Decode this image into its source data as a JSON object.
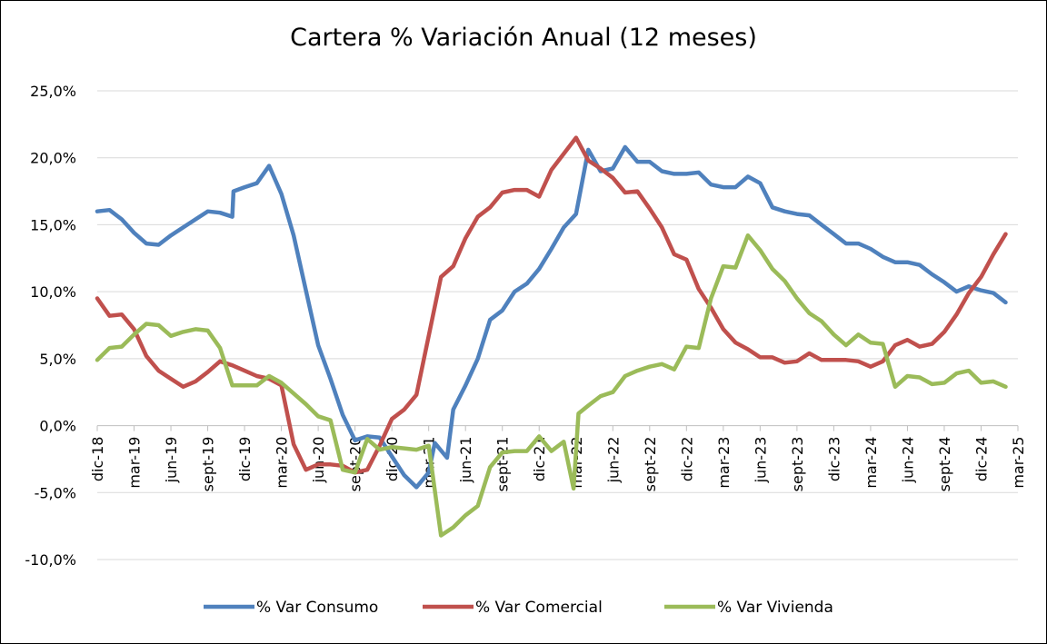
{
  "chart_data": {
    "type": "line",
    "title": "Cartera % Variación Anual (12 meses)",
    "xlabel": "",
    "ylabel": "",
    "ylim": [
      -10,
      25
    ],
    "yticks": [
      -10,
      -5,
      0,
      5,
      10,
      15,
      20,
      25
    ],
    "ytick_labels": [
      "-10,0%",
      "-5,0%",
      "0,0%",
      "5,0%",
      "10,0%",
      "15,0%",
      "20,0%",
      "25,0%"
    ],
    "grid": true,
    "legend": "bottom",
    "x_tick_labels": [
      "dic-18",
      "mar-19",
      "jun-19",
      "sept-19",
      "dic-19",
      "mar-20",
      "jun-20",
      "sept-20",
      "dic-20",
      "mar-21",
      "jun-21",
      "sept-21",
      "dic-21",
      "mar-22",
      "jun-22",
      "sept-22",
      "dic-22",
      "mar-23",
      "jun-23",
      "sept-23",
      "dic-23",
      "mar-24",
      "jun-24",
      "sept-24",
      "dic-24",
      "mar-25"
    ],
    "x_tick_months": [
      0,
      3,
      6,
      9,
      12,
      15,
      18,
      21,
      24,
      27,
      30,
      33,
      36,
      39,
      42,
      45,
      48,
      51,
      54,
      57,
      60,
      63,
      66,
      69,
      72,
      75
    ],
    "series": [
      {
        "name": "% Var Consumo",
        "color": "#4F81BD",
        "points": [
          [
            0,
            16.0
          ],
          [
            1,
            16.1
          ],
          [
            2,
            15.4
          ],
          [
            3,
            14.4
          ],
          [
            4,
            13.6
          ],
          [
            5,
            13.5
          ],
          [
            6,
            14.2
          ],
          [
            7,
            14.8
          ],
          [
            8,
            15.4
          ],
          [
            9,
            16.0
          ],
          [
            10,
            15.9
          ],
          [
            11,
            15.6
          ],
          [
            11.1,
            17.5
          ],
          [
            12,
            17.8
          ],
          [
            13,
            18.1
          ],
          [
            14,
            19.4
          ],
          [
            15,
            17.3
          ],
          [
            16,
            14.2
          ],
          [
            17,
            10.1
          ],
          [
            18,
            6.0
          ],
          [
            19,
            3.5
          ],
          [
            20,
            0.8
          ],
          [
            21,
            -1.1
          ],
          [
            22,
            -0.8
          ],
          [
            23,
            -0.9
          ],
          [
            24,
            -2.3
          ],
          [
            25,
            -3.7
          ],
          [
            26,
            -4.6
          ],
          [
            27,
            -3.5
          ],
          [
            27.5,
            -1.3
          ],
          [
            28.5,
            -2.4
          ],
          [
            29,
            1.2
          ],
          [
            30,
            3.0
          ],
          [
            31,
            5.0
          ],
          [
            32,
            7.9
          ],
          [
            33,
            8.6
          ],
          [
            34,
            10.0
          ],
          [
            35,
            10.6
          ],
          [
            36,
            11.7
          ],
          [
            37,
            13.2
          ],
          [
            38,
            14.8
          ],
          [
            39,
            15.8
          ],
          [
            40,
            20.6
          ],
          [
            41,
            19.0
          ],
          [
            42,
            19.2
          ],
          [
            43,
            20.8
          ],
          [
            44,
            19.7
          ],
          [
            45,
            19.7
          ],
          [
            46,
            19.0
          ],
          [
            47,
            18.8
          ],
          [
            48,
            18.8
          ],
          [
            49,
            18.9
          ],
          [
            50,
            18.0
          ],
          [
            51,
            17.8
          ],
          [
            52,
            17.8
          ],
          [
            53,
            18.6
          ],
          [
            54,
            18.1
          ],
          [
            55,
            16.3
          ],
          [
            56,
            16.0
          ],
          [
            57,
            15.8
          ],
          [
            58,
            15.7
          ],
          [
            59,
            15.0
          ],
          [
            60,
            14.3
          ],
          [
            61,
            13.6
          ],
          [
            62,
            13.6
          ],
          [
            63,
            13.2
          ],
          [
            64,
            12.6
          ],
          [
            65,
            12.2
          ],
          [
            66,
            12.2
          ],
          [
            67,
            12.0
          ],
          [
            68,
            11.3
          ],
          [
            69,
            10.7
          ],
          [
            70,
            10.0
          ],
          [
            71,
            10.4
          ],
          [
            72,
            10.1
          ],
          [
            73,
            9.9
          ],
          [
            74,
            9.2
          ]
        ]
      },
      {
        "name": "% Var Comercial",
        "color": "#C0504D",
        "points": [
          [
            0,
            9.5
          ],
          [
            1,
            8.2
          ],
          [
            2,
            8.3
          ],
          [
            3,
            7.2
          ],
          [
            4,
            5.2
          ],
          [
            5,
            4.1
          ],
          [
            6,
            3.5
          ],
          [
            7,
            2.9
          ],
          [
            8,
            3.3
          ],
          [
            9,
            4.0
          ],
          [
            10,
            4.8
          ],
          [
            11,
            4.5
          ],
          [
            12,
            4.1
          ],
          [
            13,
            3.7
          ],
          [
            14,
            3.5
          ],
          [
            15,
            3.0
          ],
          [
            16,
            -1.4
          ],
          [
            17,
            -3.3
          ],
          [
            18,
            -2.9
          ],
          [
            19,
            -2.9
          ],
          [
            20,
            -3.0
          ],
          [
            21,
            -3.5
          ],
          [
            22,
            -3.3
          ],
          [
            23,
            -1.5
          ],
          [
            24,
            0.5
          ],
          [
            25,
            1.2
          ],
          [
            26,
            2.3
          ],
          [
            27,
            6.7
          ],
          [
            28,
            11.1
          ],
          [
            29,
            11.9
          ],
          [
            30,
            14.0
          ],
          [
            31,
            15.6
          ],
          [
            32,
            16.3
          ],
          [
            33,
            17.4
          ],
          [
            34,
            17.6
          ],
          [
            35,
            17.6
          ],
          [
            36,
            17.1
          ],
          [
            37,
            19.1
          ],
          [
            38,
            20.3
          ],
          [
            39,
            21.5
          ],
          [
            40,
            19.8
          ],
          [
            41,
            19.2
          ],
          [
            42,
            18.5
          ],
          [
            43,
            17.4
          ],
          [
            44,
            17.5
          ],
          [
            45,
            16.2
          ],
          [
            46,
            14.8
          ],
          [
            47,
            12.8
          ],
          [
            48,
            12.4
          ],
          [
            49,
            10.2
          ],
          [
            50,
            8.8
          ],
          [
            51,
            7.2
          ],
          [
            52,
            6.2
          ],
          [
            53,
            5.7
          ],
          [
            54,
            5.1
          ],
          [
            55,
            5.1
          ],
          [
            56,
            4.7
          ],
          [
            57,
            4.8
          ],
          [
            58,
            5.4
          ],
          [
            59,
            4.9
          ],
          [
            60,
            4.9
          ],
          [
            61,
            4.9
          ],
          [
            62,
            4.8
          ],
          [
            63,
            4.4
          ],
          [
            64,
            4.8
          ],
          [
            65,
            6.0
          ],
          [
            66,
            6.4
          ],
          [
            67,
            5.9
          ],
          [
            68,
            6.1
          ],
          [
            69,
            7.0
          ],
          [
            70,
            8.3
          ],
          [
            71,
            9.9
          ],
          [
            72,
            11.1
          ],
          [
            73,
            12.8
          ],
          [
            74,
            14.3
          ]
        ]
      },
      {
        "name": "% Var Vivienda",
        "color": "#9BBB59",
        "points": [
          [
            0,
            4.9
          ],
          [
            1,
            5.8
          ],
          [
            2,
            5.9
          ],
          [
            3,
            6.8
          ],
          [
            4,
            7.6
          ],
          [
            5,
            7.5
          ],
          [
            6,
            6.7
          ],
          [
            7,
            7.0
          ],
          [
            8,
            7.2
          ],
          [
            9,
            7.1
          ],
          [
            10,
            5.8
          ],
          [
            11,
            3.0
          ],
          [
            12,
            3.0
          ],
          [
            13,
            3.0
          ],
          [
            14,
            3.7
          ],
          [
            15,
            3.2
          ],
          [
            16,
            2.4
          ],
          [
            17,
            1.6
          ],
          [
            18,
            0.7
          ],
          [
            19,
            0.4
          ],
          [
            20,
            -3.3
          ],
          [
            21,
            -3.5
          ],
          [
            22,
            -1.0
          ],
          [
            23,
            -1.8
          ],
          [
            24,
            -1.6
          ],
          [
            25,
            -1.7
          ],
          [
            26,
            -1.8
          ],
          [
            27,
            -1.5
          ],
          [
            28,
            -8.2
          ],
          [
            29,
            -7.6
          ],
          [
            30,
            -6.7
          ],
          [
            31,
            -6.0
          ],
          [
            32,
            -3.1
          ],
          [
            33,
            -2.0
          ],
          [
            34,
            -1.9
          ],
          [
            35,
            -1.9
          ],
          [
            36,
            -0.8
          ],
          [
            37,
            -1.9
          ],
          [
            38,
            -1.2
          ],
          [
            38.8,
            -4.7
          ],
          [
            39.2,
            0.9
          ],
          [
            40,
            1.5
          ],
          [
            41,
            2.2
          ],
          [
            42,
            2.5
          ],
          [
            43,
            3.7
          ],
          [
            44,
            4.1
          ],
          [
            45,
            4.4
          ],
          [
            46,
            4.6
          ],
          [
            47,
            4.2
          ],
          [
            48,
            5.9
          ],
          [
            49,
            5.8
          ],
          [
            50,
            9.5
          ],
          [
            51,
            11.9
          ],
          [
            52,
            11.8
          ],
          [
            53,
            14.2
          ],
          [
            54,
            13.1
          ],
          [
            55,
            11.7
          ],
          [
            56,
            10.8
          ],
          [
            57,
            9.5
          ],
          [
            58,
            8.4
          ],
          [
            59,
            7.8
          ],
          [
            60,
            6.8
          ],
          [
            61,
            6.0
          ],
          [
            62,
            6.8
          ],
          [
            63,
            6.2
          ],
          [
            64,
            6.1
          ],
          [
            65,
            2.9
          ],
          [
            66,
            3.7
          ],
          [
            67,
            3.6
          ],
          [
            68,
            3.1
          ],
          [
            69,
            3.2
          ],
          [
            70,
            3.9
          ],
          [
            71,
            4.1
          ],
          [
            72,
            3.2
          ],
          [
            73,
            3.3
          ],
          [
            74,
            2.9
          ]
        ]
      }
    ]
  }
}
